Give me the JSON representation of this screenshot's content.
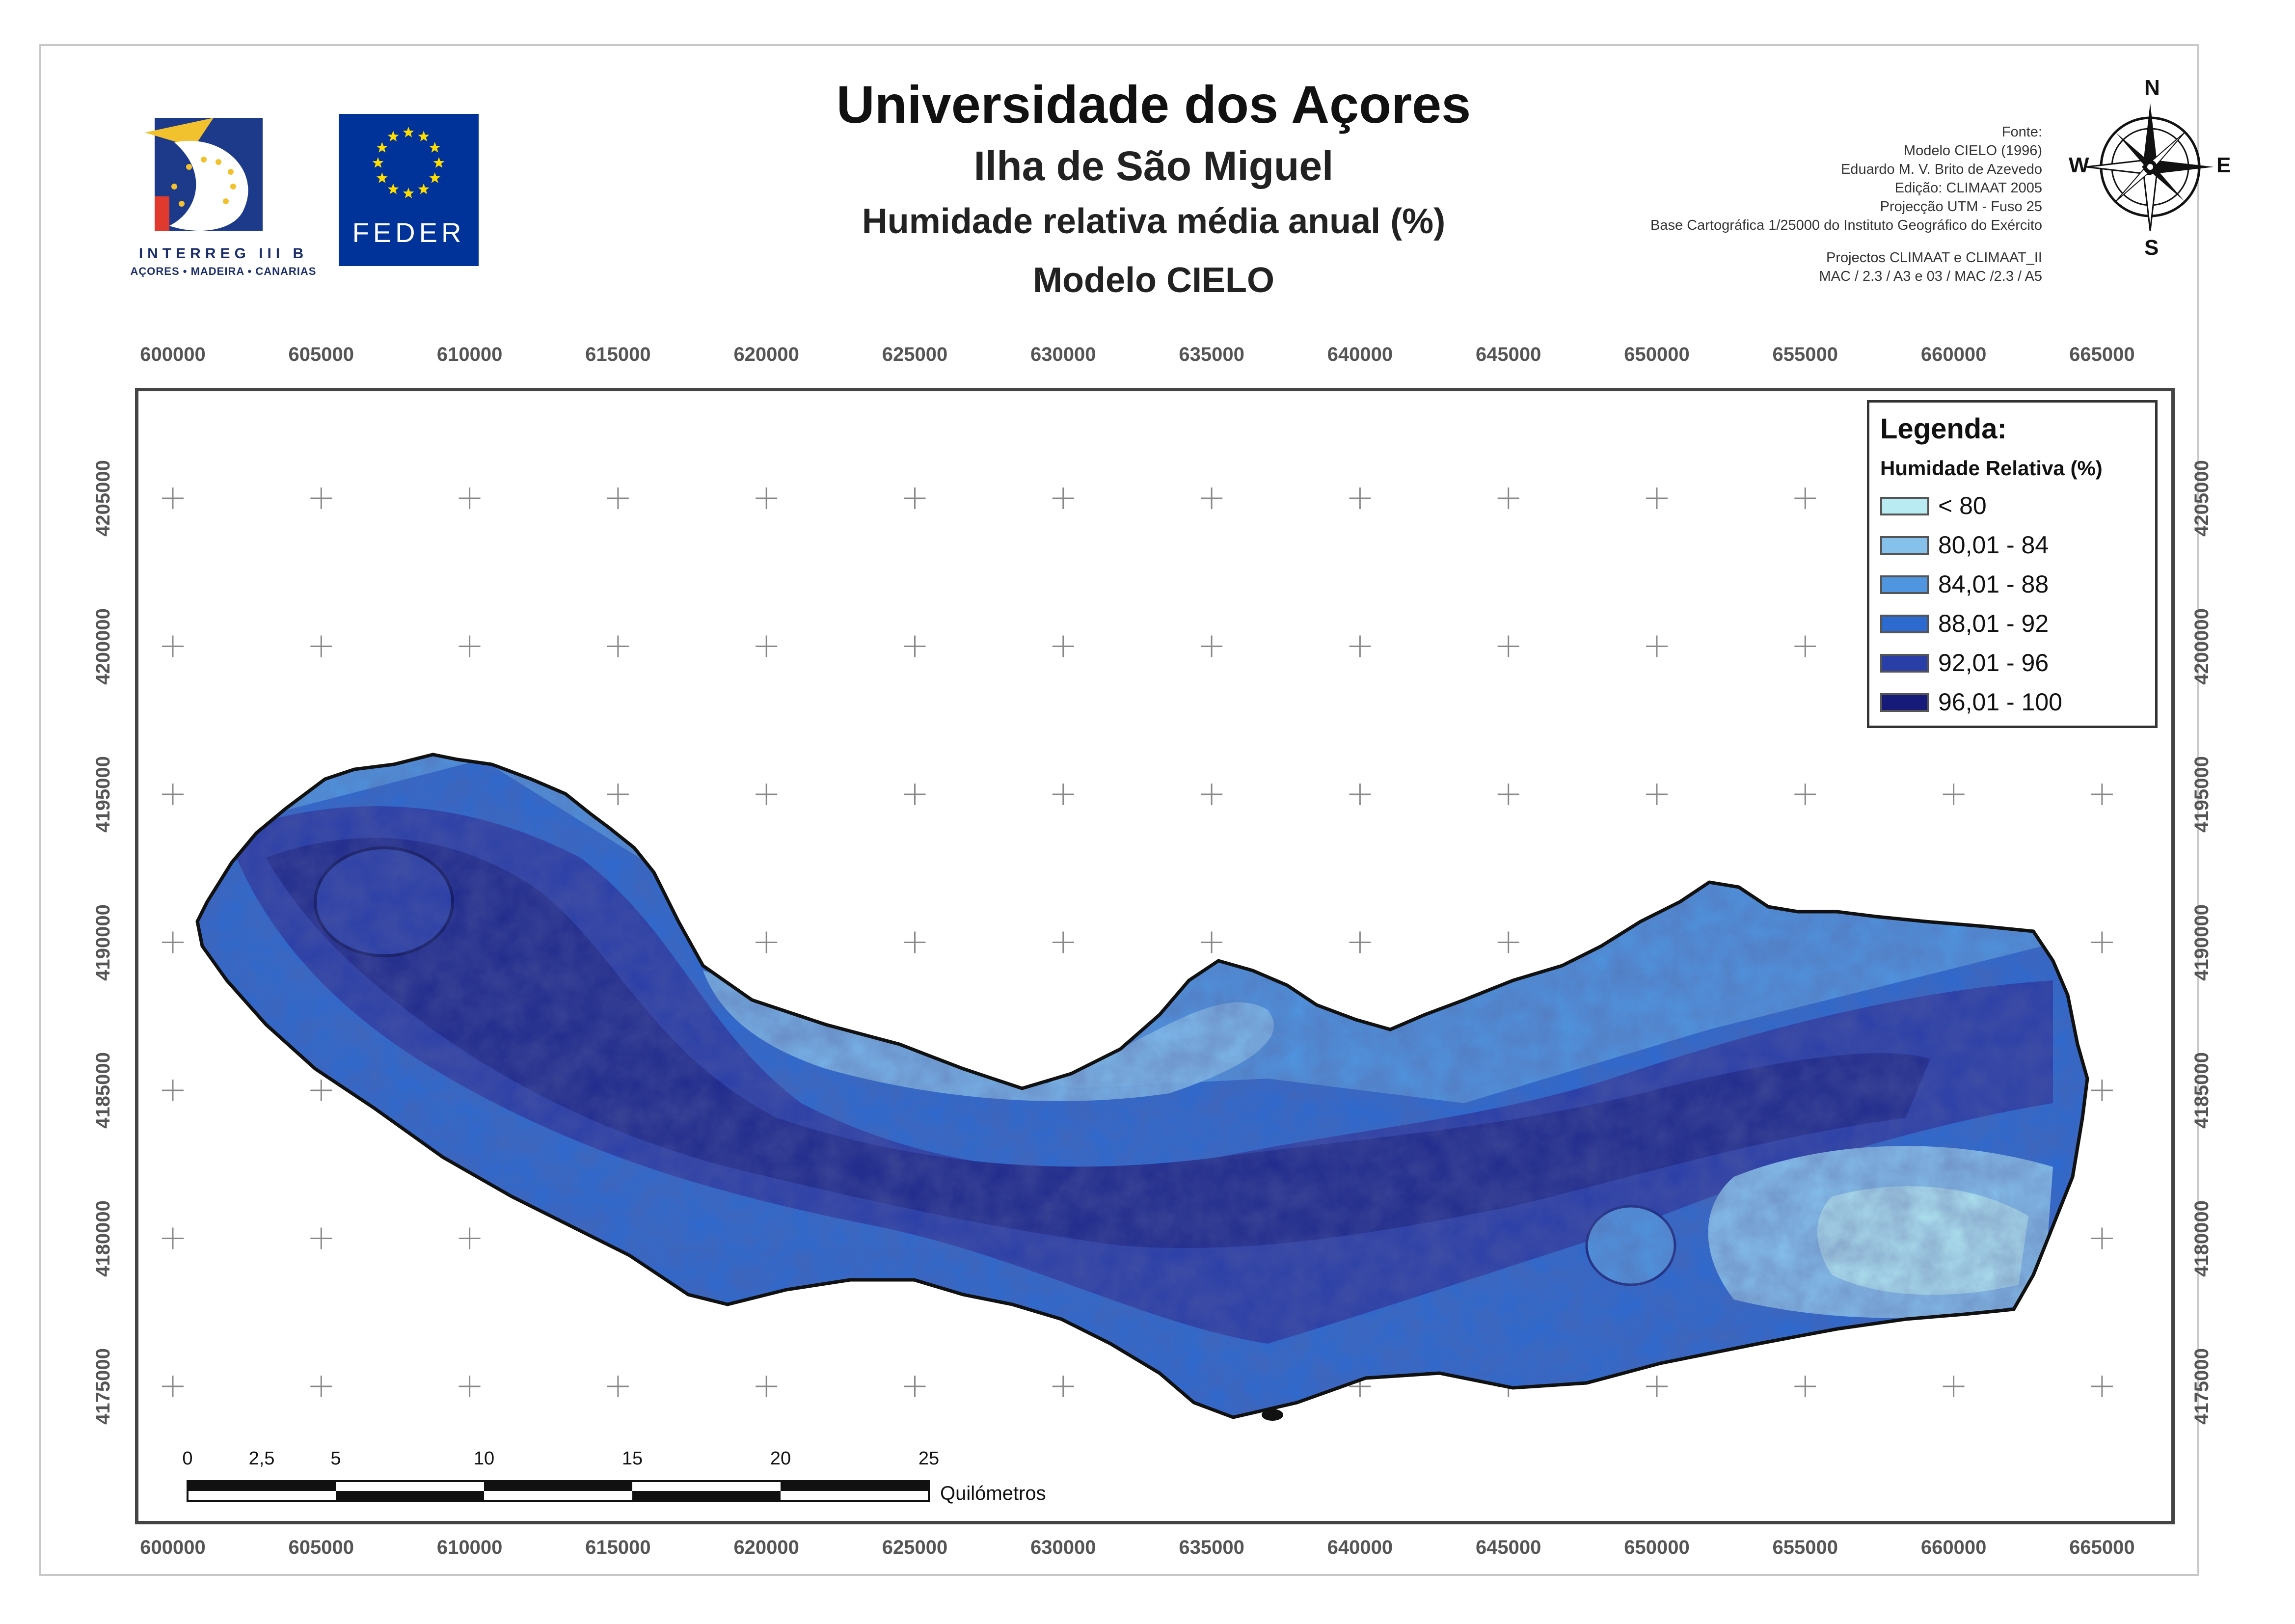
{
  "titles": {
    "main": "Universidade dos Açores",
    "island": "Ilha de São Miguel",
    "variable": "Humidade relativa média anual (%)",
    "model": "Modelo CIELO"
  },
  "logos": {
    "interreg_caption": "INTERREG III B",
    "interreg_regions": "AÇORES • MADEIRA • CANARIAS",
    "eu_caption": "FEDER"
  },
  "credits": [
    "Fonte:",
    "Modelo CIELO (1996)",
    "Eduardo M. V. Brito de Azevedo",
    "Edição: CLIMAAT 2005",
    "Projecção UTM - Fuso 25",
    "Base Cartográfica 1/25000 do Instituto Geográfico do Exército",
    "Projectos CLIMAAT e CLIMAAT_II",
    "MAC / 2.3 / A3 e 03 / MAC /2.3 / A5"
  ],
  "compass": {
    "north": "N",
    "south": "S",
    "east": "E",
    "west": "W"
  },
  "map": {
    "x_ticks": [
      "600000",
      "605000",
      "610000",
      "615000",
      "620000",
      "625000",
      "630000",
      "635000",
      "640000",
      "645000",
      "650000",
      "655000",
      "660000",
      "665000"
    ],
    "y_ticks": [
      "4205000",
      "4200000",
      "4195000",
      "4190000",
      "4185000",
      "4180000",
      "4175000"
    ]
  },
  "legend": {
    "title": "Legenda:",
    "subtitle": "Humidade Relativa (%)",
    "classes": [
      {
        "label": "< 80",
        "color": "#b9ecf2"
      },
      {
        "label": "80,01 - 84",
        "color": "#86c1ec"
      },
      {
        "label": "84,01 - 88",
        "color": "#4f95e0"
      },
      {
        "label": "88,01 - 92",
        "color": "#2d6ad0"
      },
      {
        "label": "92,01 - 96",
        "color": "#2a3ea8"
      },
      {
        "label": "96,01 - 100",
        "color": "#161a78"
      }
    ]
  },
  "scale_bar": {
    "labels": [
      "0",
      "2,5",
      "5",
      "10",
      "15",
      "20",
      "25"
    ],
    "unit": "Quilómetros"
  }
}
